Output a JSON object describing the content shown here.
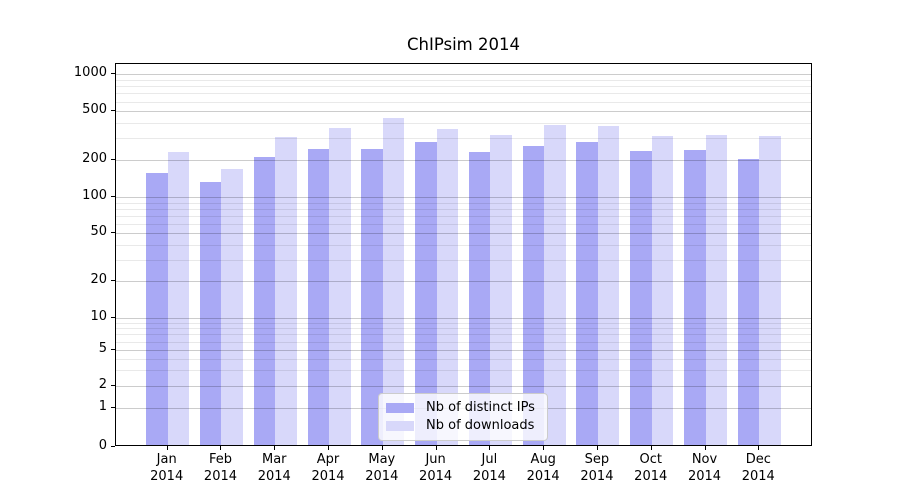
{
  "chart_data": {
    "type": "bar",
    "title": "ChIPsim 2014",
    "xlabel": "",
    "ylabel": "",
    "categories": [
      "Jan",
      "Feb",
      "Mar",
      "Apr",
      "May",
      "Jun",
      "Jul",
      "Aug",
      "Sep",
      "Oct",
      "Nov",
      "Dec"
    ],
    "category_year_suffix": "2014",
    "series": [
      {
        "name": "Nb of distinct IPs",
        "color": "#a9a9f5",
        "values": [
          151,
          128,
          204,
          237,
          236,
          271,
          226,
          250,
          272,
          227,
          231,
          198
        ]
      },
      {
        "name": "Nb of downloads",
        "color": "#d8d8fa",
        "values": [
          225,
          164,
          297,
          352,
          422,
          345,
          308,
          372,
          367,
          301,
          310,
          301
        ]
      }
    ],
    "yscale": "log-like (1-2-5 ticks, compressed below 10, baseline 0)",
    "ylim": [
      0,
      1200
    ],
    "ytick_values": [
      0,
      1,
      2,
      5,
      10,
      20,
      50,
      100,
      200,
      500,
      1000
    ],
    "ytick_labels": [
      "0",
      "1",
      "2",
      "5",
      "10",
      "20",
      "50",
      "100",
      "200",
      "500",
      "1000"
    ],
    "minor_grid_values": [
      3,
      4,
      6,
      7,
      8,
      9,
      30,
      40,
      60,
      70,
      80,
      90,
      300,
      400,
      600,
      700,
      800,
      900
    ],
    "grid": "horizontal major + minor, shown through translucent bars",
    "legend_position": "bottom-center inside plot",
    "colors": {
      "bar_ips": "#a9a9f5",
      "bar_downloads": "#d8d8fa",
      "major_grid": "#cccccc",
      "minor_grid": "#ebebeb",
      "axis": "#000000",
      "background": "#ffffff"
    }
  }
}
